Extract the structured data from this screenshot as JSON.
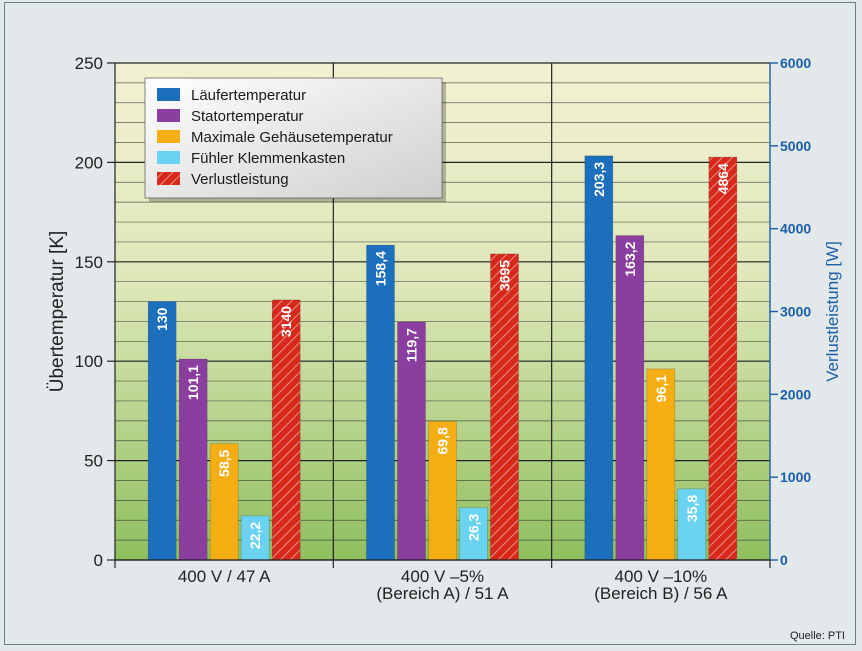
{
  "source_label": "Quelle: PTI",
  "colors": {
    "laeufer": "#1b6fbd",
    "stator": "#8a3ea0",
    "gehaeuse": "#f5ad14",
    "fuehler": "#6ad3f2",
    "verlust": "#d7281c",
    "right_axis": "#1a5fa8"
  },
  "chart_data": {
    "type": "bar",
    "categories": [
      [
        "400 V / 47 A"
      ],
      [
        "400 V –5%",
        "(Bereich A) / 51 A"
      ],
      [
        "400 V –10%",
        "(Bereich B) / 56 A"
      ]
    ],
    "series": [
      {
        "name": "Läufertemperatur",
        "axis": "left",
        "color_key": "laeufer",
        "values": [
          130,
          158.4,
          203.3
        ],
        "labels": [
          "130",
          "158,4",
          "203,3"
        ]
      },
      {
        "name": "Statortemperatur",
        "axis": "left",
        "color_key": "stator",
        "values": [
          101.1,
          119.7,
          163.2
        ],
        "labels": [
          "101,1",
          "119,7",
          "163,2"
        ]
      },
      {
        "name": "Maximale Gehäusetemperatur",
        "axis": "left",
        "color_key": "gehaeuse",
        "values": [
          58.5,
          69.8,
          96.1
        ],
        "labels": [
          "58,5",
          "69,8",
          "96,1"
        ]
      },
      {
        "name": "Fühler Klemmenkasten",
        "axis": "left",
        "color_key": "fuehler",
        "values": [
          22.2,
          26.3,
          35.8
        ],
        "labels": [
          "22,2",
          "26,3",
          "35,8"
        ]
      },
      {
        "name": "Verlustleistung",
        "axis": "right",
        "color_key": "verlust",
        "hatched": true,
        "values": [
          3140,
          3695,
          4864
        ],
        "labels": [
          "3140",
          "3695",
          "4864"
        ]
      }
    ],
    "ylabel_left": "Übertemperatur [K]",
    "ylabel_right": "Verlustleistung [W]",
    "ylim_left": [
      0,
      250
    ],
    "ylim_right": [
      0,
      6000
    ],
    "yticks_left": [
      "0",
      "50",
      "100",
      "150",
      "200",
      "250"
    ],
    "yticks_right": [
      "0",
      "1000",
      "2000",
      "3000",
      "4000",
      "5000",
      "6000"
    ],
    "grid": true,
    "legend_position": "top-left"
  }
}
